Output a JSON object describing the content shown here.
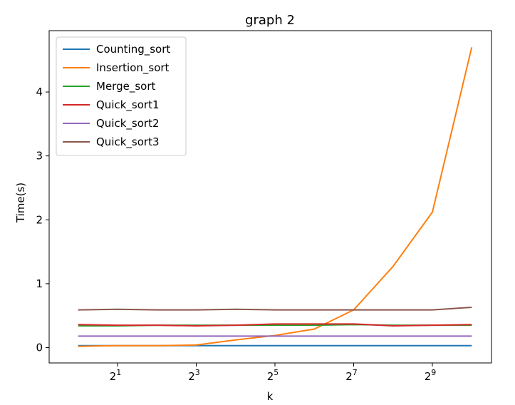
{
  "chart_data": {
    "type": "line",
    "title": "graph 2",
    "xlabel": "k",
    "ylabel": "Time(s)",
    "x_scale": "log2",
    "x": [
      1,
      2,
      4,
      8,
      16,
      32,
      64,
      128,
      256,
      512,
      1024
    ],
    "xticks": [
      2,
      8,
      32,
      128,
      512
    ],
    "xtick_base": "2",
    "xtick_exponents": [
      "1",
      "3",
      "5",
      "7",
      "9"
    ],
    "xlim": [
      0.6,
      1450
    ],
    "ylim": [
      -0.24,
      4.96
    ],
    "yticks": [
      0,
      1,
      2,
      3,
      4
    ],
    "ytick_labels": [
      "0",
      "1",
      "2",
      "3",
      "4"
    ],
    "legend_position": "top-left",
    "grid": false,
    "series": [
      {
        "name": "Counting_sort",
        "color": "#1f77b4",
        "values": [
          0.03,
          0.03,
          0.03,
          0.03,
          0.03,
          0.03,
          0.03,
          0.03,
          0.03,
          0.03,
          0.03
        ]
      },
      {
        "name": "Insertion_sort",
        "color": "#ff7f0e",
        "values": [
          0.02,
          0.03,
          0.03,
          0.04,
          0.12,
          0.19,
          0.29,
          0.59,
          1.27,
          2.12,
          4.7
        ]
      },
      {
        "name": "Merge_sort",
        "color": "#2ca02c",
        "values": [
          0.34,
          0.34,
          0.35,
          0.35,
          0.35,
          0.35,
          0.35,
          0.36,
          0.35,
          0.35,
          0.35
        ]
      },
      {
        "name": "Quick_sort1",
        "color": "#d62728",
        "values": [
          0.36,
          0.35,
          0.35,
          0.34,
          0.35,
          0.37,
          0.37,
          0.37,
          0.34,
          0.35,
          0.36
        ]
      },
      {
        "name": "Quick_sort2",
        "color": "#9467bd",
        "values": [
          0.18,
          0.18,
          0.18,
          0.18,
          0.18,
          0.18,
          0.18,
          0.18,
          0.18,
          0.18,
          0.18
        ]
      },
      {
        "name": "Quick_sort3",
        "color": "#8c564b",
        "values": [
          0.59,
          0.6,
          0.59,
          0.59,
          0.6,
          0.59,
          0.59,
          0.59,
          0.59,
          0.59,
          0.63
        ]
      }
    ]
  }
}
